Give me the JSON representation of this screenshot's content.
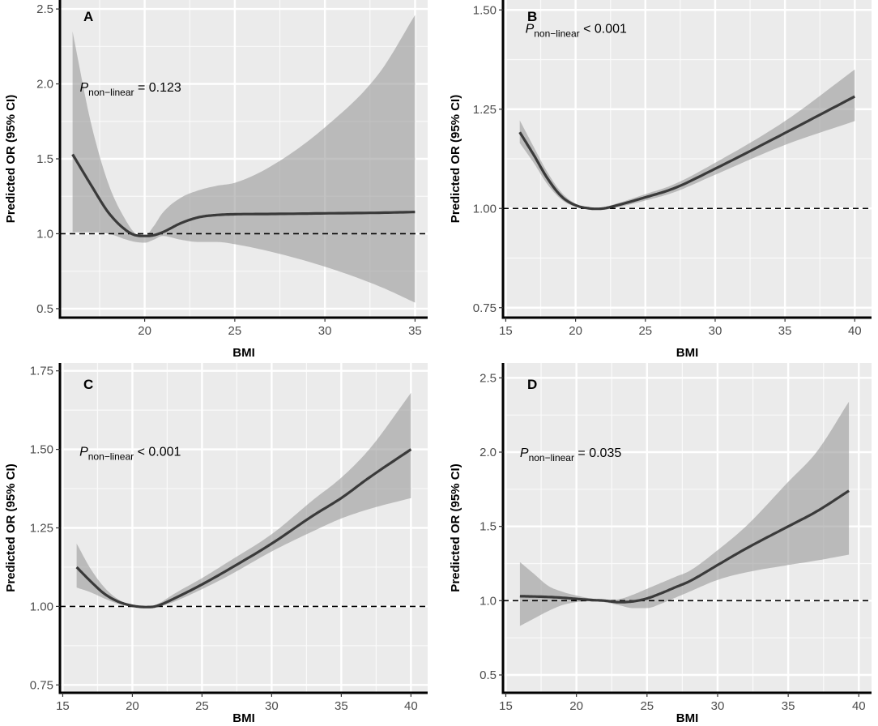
{
  "chart_data": [
    {
      "type": "line",
      "panel": "A",
      "xlabel": "BMI",
      "ylabel": "Predicted OR (95% CI)",
      "xlim": [
        15.3,
        35.7
      ],
      "ylim": [
        0.44,
        2.56
      ],
      "xticks": [
        20,
        25,
        30,
        35
      ],
      "yticks": [
        0.5,
        1.0,
        1.5,
        2.0,
        2.5
      ],
      "ytick_labels": [
        "0.5",
        "1.0",
        "1.5",
        "2.0",
        "2.5"
      ],
      "reference_line": 1.0,
      "p_label": {
        "symbol": "P",
        "subscript": "non−linear",
        "relation": " = 0.123",
        "x": 16.4,
        "y": 1.98
      },
      "series": [
        {
          "name": "Predicted OR",
          "x": [
            16,
            17,
            18,
            19,
            19.5,
            20,
            20.5,
            21,
            22,
            23,
            24,
            25,
            27,
            30,
            33,
            35
          ],
          "y": [
            1.53,
            1.33,
            1.14,
            1.02,
            0.99,
            0.985,
            0.99,
            1.01,
            1.07,
            1.11,
            1.125,
            1.13,
            1.132,
            1.136,
            1.14,
            1.145
          ],
          "lower": [
            1.01,
            1.01,
            1.0,
            0.96,
            0.945,
            0.94,
            0.96,
            0.985,
            0.96,
            0.945,
            0.945,
            0.93,
            0.88,
            0.78,
            0.65,
            0.54
          ],
          "upper": [
            2.35,
            1.75,
            1.33,
            1.08,
            1.0,
            0.985,
            1.05,
            1.14,
            1.24,
            1.29,
            1.32,
            1.34,
            1.45,
            1.71,
            2.07,
            2.46
          ]
        }
      ]
    },
    {
      "type": "line",
      "panel": "B",
      "xlabel": "BMI",
      "ylabel": "Predicted OR (95% CI)",
      "xlim": [
        14.8,
        41.2
      ],
      "ylim": [
        0.725,
        1.525
      ],
      "xticks": [
        15,
        20,
        25,
        30,
        35,
        40
      ],
      "yticks": [
        0.75,
        1.0,
        1.25,
        1.5
      ],
      "ytick_labels": [
        "0.75",
        "1.00",
        "1.25",
        "1.50"
      ],
      "reference_line": 1.0,
      "p_label": {
        "symbol": "P",
        "subscript": "non−linear",
        "relation": " < 0.001",
        "x": 16.4,
        "y": 1.455
      },
      "series": [
        {
          "name": "Predicted OR",
          "x": [
            16,
            17,
            18,
            19,
            20,
            21,
            21.5,
            22,
            23,
            25,
            27,
            30,
            35,
            40
          ],
          "y": [
            1.192,
            1.135,
            1.075,
            1.03,
            1.008,
            1.0,
            0.999,
            1.0,
            1.008,
            1.028,
            1.05,
            1.1,
            1.19,
            1.282
          ],
          "lower": [
            1.165,
            1.115,
            1.06,
            1.022,
            1.004,
            0.998,
            0.997,
            0.997,
            1.003,
            1.02,
            1.04,
            1.085,
            1.16,
            1.22
          ],
          "upper": [
            1.222,
            1.155,
            1.09,
            1.04,
            1.012,
            1.002,
            1.001,
            1.003,
            1.013,
            1.036,
            1.06,
            1.115,
            1.22,
            1.35
          ]
        }
      ]
    },
    {
      "type": "line",
      "panel": "C",
      "xlabel": "BMI",
      "ylabel": "Predicted OR (95% CI)",
      "xlim": [
        14.8,
        41.2
      ],
      "ylim": [
        0.725,
        1.775
      ],
      "xticks": [
        15,
        20,
        25,
        30,
        35,
        40
      ],
      "yticks": [
        0.75,
        1.0,
        1.25,
        1.5,
        1.75
      ],
      "ytick_labels": [
        "0.75",
        "1.00",
        "1.25",
        "1.50",
        "1.75"
      ],
      "reference_line": 1.0,
      "p_label": {
        "symbol": "P",
        "subscript": "non−linear",
        "relation": " < 0.001",
        "x": 16.2,
        "y": 1.495
      },
      "series": [
        {
          "name": "Predicted OR",
          "x": [
            16,
            17,
            18,
            19,
            20,
            20.5,
            21,
            21.5,
            22,
            23,
            25,
            27,
            30,
            33,
            35,
            37,
            40
          ],
          "y": [
            1.125,
            1.08,
            1.04,
            1.015,
            1.002,
            0.999,
            0.998,
            0.999,
            1.005,
            1.025,
            1.07,
            1.12,
            1.2,
            1.29,
            1.345,
            1.41,
            1.5
          ],
          "lower": [
            1.06,
            1.045,
            1.025,
            1.008,
            1.0,
            0.997,
            0.996,
            0.997,
            1.0,
            1.015,
            1.055,
            1.1,
            1.175,
            1.24,
            1.28,
            1.31,
            1.345
          ],
          "upper": [
            1.2,
            1.12,
            1.06,
            1.022,
            1.004,
            1.0,
            1.0,
            1.002,
            1.012,
            1.04,
            1.09,
            1.145,
            1.23,
            1.34,
            1.41,
            1.5,
            1.68
          ]
        }
      ]
    },
    {
      "type": "line",
      "panel": "D",
      "xlabel": "BMI",
      "ylabel": "Predicted OR (95% CI)",
      "xlim": [
        14.8,
        40.9
      ],
      "ylim": [
        0.38,
        2.6
      ],
      "xticks": [
        15,
        20,
        25,
        30,
        35,
        40
      ],
      "yticks": [
        0.5,
        1.0,
        1.5,
        2.0,
        2.5
      ],
      "ytick_labels": [
        "0.5",
        "1.0",
        "1.5",
        "2.0",
        "2.5"
      ],
      "reference_line": 1.0,
      "p_label": {
        "symbol": "P",
        "subscript": "non−linear",
        "relation": " = 0.035",
        "x": 16.0,
        "y": 2.0
      },
      "series": [
        {
          "name": "Predicted OR",
          "x": [
            16,
            17,
            18,
            19,
            20,
            21,
            22,
            23,
            24,
            25,
            26,
            27,
            28,
            30,
            32,
            35,
            37,
            39.3
          ],
          "y": [
            1.03,
            1.028,
            1.025,
            1.02,
            1.012,
            1.005,
            1.0,
            0.99,
            0.995,
            1.015,
            1.05,
            1.09,
            1.13,
            1.24,
            1.35,
            1.5,
            1.6,
            1.74
          ],
          "lower": [
            0.83,
            0.88,
            0.93,
            0.97,
            0.99,
            0.995,
            0.99,
            0.97,
            0.95,
            0.95,
            0.98,
            1.02,
            1.06,
            1.14,
            1.19,
            1.24,
            1.27,
            1.31
          ],
          "upper": [
            1.26,
            1.18,
            1.1,
            1.06,
            1.035,
            1.015,
            1.005,
            1.01,
            1.04,
            1.08,
            1.12,
            1.16,
            1.2,
            1.34,
            1.5,
            1.8,
            2.0,
            2.34
          ]
        }
      ]
    }
  ]
}
